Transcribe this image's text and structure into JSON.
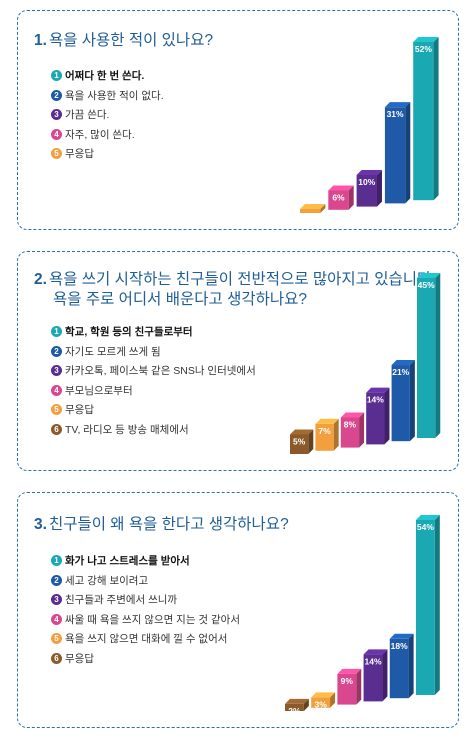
{
  "colors": {
    "title": "#1f5e98",
    "palette": [
      "#1aa9b3",
      "#1e5aa8",
      "#5a2d91",
      "#d9488e",
      "#f2a03d",
      "#8b5a2b"
    ]
  },
  "questions": [
    {
      "number": "1.",
      "title_lines": [
        "욕을 사용한 적이 있나요?"
      ],
      "options": [
        "어쩌다 한 번 쓴다.",
        "욕을 사용한 적이 없다.",
        "가끔 쓴다.",
        "자주, 많이 쓴다.",
        "무응답"
      ],
      "option_numbers": [
        "1",
        "2",
        "3",
        "4",
        "5"
      ]
    },
    {
      "number": "2.",
      "title_lines": [
        "욕을 쓰기 시작하는 친구들이 전반적으로 많아지고 있습니다.",
        "욕을 주로 어디서 배운다고 생각하나요?"
      ],
      "options": [
        "학교, 학원 등의 친구들로부터",
        "자기도 모르게 쓰게 됨",
        "카카오톡, 페이스북 같은 SNS나 인터넷에서",
        "부모님으로부터",
        "무응답",
        "TV, 라디오 등 방송 매체에서"
      ],
      "option_numbers": [
        "1",
        "2",
        "3",
        "4",
        "5",
        "6"
      ]
    },
    {
      "number": "3.",
      "title_lines": [
        "친구들이 왜 욕을 한다고 생각하나요?"
      ],
      "options": [
        "화가 나고 스트레스를 받아서",
        "세고 강해 보이려고",
        "친구들과 주변에서 쓰니까",
        "싸울 때 욕을 쓰지 않으면 지는 것 같아서",
        "욕을 쓰지 않으면 대화에 낄 수 없어서",
        "무응답"
      ],
      "option_numbers": [
        "1",
        "2",
        "3",
        "4",
        "5",
        "6"
      ]
    }
  ],
  "chart_data": [
    {
      "type": "bar",
      "title": "욕을 사용한 적이 있나요?",
      "categories": [
        "어쩌다 한 번 쓴다.",
        "욕을 사용한 적이 없다.",
        "가끔 쓴다.",
        "자주, 많이 쓴다.",
        "무응답"
      ],
      "values": [
        52,
        31,
        10,
        6,
        1
      ],
      "data_labels": [
        "52%",
        "31%",
        "10%",
        "6%",
        "1%"
      ],
      "draw_order": [
        4,
        3,
        2,
        1,
        0
      ],
      "colors": [
        "#1aa9b3",
        "#1e5aa8",
        "#5a2d91",
        "#d9488e",
        "#f2a03d"
      ],
      "style": "3d-staircase",
      "ylim": [
        0,
        52
      ],
      "grid": false
    },
    {
      "type": "bar",
      "title": "욕을 주로 어디서 배운다고 생각하나요?",
      "categories": [
        "학교, 학원 등의 친구들로부터",
        "자기도 모르게 쓰게 됨",
        "카카오톡, 페이스북 같은 SNS나 인터넷에서",
        "부모님으로부터",
        "무응답",
        "TV, 라디오 등 방송 매체에서"
      ],
      "values": [
        45,
        21,
        14,
        8,
        7,
        5
      ],
      "data_labels": [
        "45%",
        "21%",
        "14%",
        "8%",
        "7%",
        "5%"
      ],
      "draw_order": [
        5,
        4,
        3,
        2,
        1,
        0
      ],
      "colors": [
        "#1aa9b3",
        "#1e5aa8",
        "#5a2d91",
        "#d9488e",
        "#f2a03d",
        "#8b5a2b"
      ],
      "style": "3d-staircase",
      "ylim": [
        0,
        45
      ],
      "grid": false
    },
    {
      "type": "bar",
      "title": "친구들이 왜 욕을 한다고 생각하나요?",
      "categories": [
        "화가 나고 스트레스를 받아서",
        "세고 강해 보이려고",
        "친구들과 주변에서 쓰니까",
        "싸울 때 욕을 쓰지 않으면 지는 것 같아서",
        "욕을 쓰지 않으면 대화에 낄 수 없어서",
        "무응답"
      ],
      "values": [
        54,
        18,
        14,
        9,
        3,
        2
      ],
      "data_labels": [
        "54%",
        "18%",
        "14%",
        "9%",
        "3%",
        "2%"
      ],
      "draw_order": [
        5,
        4,
        3,
        2,
        1,
        0
      ],
      "colors": [
        "#1aa9b3",
        "#1e5aa8",
        "#5a2d91",
        "#d9488e",
        "#f2a03d",
        "#8b5a2b"
      ],
      "style": "3d-staircase",
      "ylim": [
        0,
        54
      ],
      "grid": false
    }
  ]
}
